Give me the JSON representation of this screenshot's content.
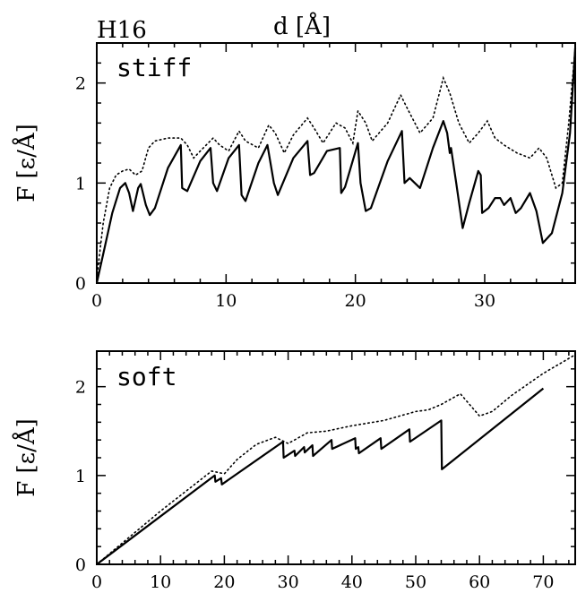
{
  "figure_label": "H16",
  "top_xlabel": "d [Å]",
  "chart_data": [
    {
      "type": "line",
      "panel_label": "stiff",
      "ylabel": "F [ε/Å]",
      "xlim": [
        0,
        37
      ],
      "ylim": [
        0,
        2.4
      ],
      "x_ticks": [
        0,
        10,
        20,
        30
      ],
      "y_ticks": [
        0,
        1,
        2
      ],
      "series": [
        {
          "style": "solid",
          "points": [
            [
              0,
              0
            ],
            [
              0.6,
              0.35
            ],
            [
              1.2,
              0.7
            ],
            [
              1.8,
              0.95
            ],
            [
              2.2,
              1.0
            ],
            [
              2.5,
              0.9
            ],
            [
              2.8,
              0.72
            ],
            [
              3.2,
              0.95
            ],
            [
              3.4,
              0.99
            ],
            [
              3.8,
              0.78
            ],
            [
              4.1,
              0.68
            ],
            [
              4.5,
              0.75
            ],
            [
              5.5,
              1.15
            ],
            [
              6.5,
              1.38
            ],
            [
              6.6,
              0.95
            ],
            [
              7.0,
              0.92
            ],
            [
              8.0,
              1.22
            ],
            [
              8.8,
              1.35
            ],
            [
              9.0,
              1.0
            ],
            [
              9.3,
              0.92
            ],
            [
              10.2,
              1.25
            ],
            [
              11.0,
              1.38
            ],
            [
              11.2,
              0.88
            ],
            [
              11.5,
              0.82
            ],
            [
              12.5,
              1.2
            ],
            [
              13.2,
              1.38
            ],
            [
              13.7,
              1.0
            ],
            [
              14.0,
              0.88
            ],
            [
              15.2,
              1.25
            ],
            [
              16.3,
              1.42
            ],
            [
              16.5,
              1.08
            ],
            [
              16.8,
              1.1
            ],
            [
              17.8,
              1.32
            ],
            [
              18.8,
              1.35
            ],
            [
              18.9,
              0.9
            ],
            [
              19.2,
              0.96
            ],
            [
              20.2,
              1.4
            ],
            [
              20.4,
              1.0
            ],
            [
              20.8,
              0.72
            ],
            [
              21.2,
              0.75
            ],
            [
              22.5,
              1.22
            ],
            [
              23.6,
              1.52
            ],
            [
              23.8,
              1.0
            ],
            [
              24.2,
              1.05
            ],
            [
              25.0,
              0.95
            ],
            [
              26.0,
              1.35
            ],
            [
              26.8,
              1.62
            ],
            [
              27.1,
              1.5
            ],
            [
              27.3,
              1.3
            ],
            [
              27.4,
              1.35
            ],
            [
              27.8,
              1.0
            ],
            [
              28.3,
              0.55
            ],
            [
              28.8,
              0.8
            ],
            [
              29.5,
              1.12
            ],
            [
              29.7,
              1.08
            ],
            [
              29.8,
              0.7
            ],
            [
              30.3,
              0.75
            ],
            [
              30.8,
              0.85
            ],
            [
              31.2,
              0.85
            ],
            [
              31.5,
              0.78
            ],
            [
              32.0,
              0.85
            ],
            [
              32.4,
              0.7
            ],
            [
              32.8,
              0.75
            ],
            [
              33.5,
              0.9
            ],
            [
              34.0,
              0.72
            ],
            [
              34.5,
              0.4
            ],
            [
              35.2,
              0.5
            ],
            [
              36.0,
              0.9
            ],
            [
              36.6,
              1.5
            ],
            [
              37.0,
              2.35
            ]
          ]
        },
        {
          "style": "dotted",
          "points": [
            [
              0,
              0.05
            ],
            [
              0.5,
              0.6
            ],
            [
              1.0,
              0.95
            ],
            [
              1.5,
              1.08
            ],
            [
              2.0,
              1.12
            ],
            [
              2.5,
              1.14
            ],
            [
              3.0,
              1.08
            ],
            [
              3.5,
              1.12
            ],
            [
              4.0,
              1.35
            ],
            [
              4.5,
              1.42
            ],
            [
              5.5,
              1.45
            ],
            [
              6.5,
              1.45
            ],
            [
              7.0,
              1.38
            ],
            [
              7.5,
              1.25
            ],
            [
              8.0,
              1.32
            ],
            [
              9.0,
              1.45
            ],
            [
              9.5,
              1.38
            ],
            [
              10.2,
              1.32
            ],
            [
              11.0,
              1.52
            ],
            [
              11.5,
              1.42
            ],
            [
              12.5,
              1.35
            ],
            [
              13.3,
              1.58
            ],
            [
              13.8,
              1.5
            ],
            [
              14.5,
              1.3
            ],
            [
              15.2,
              1.48
            ],
            [
              16.3,
              1.65
            ],
            [
              16.8,
              1.55
            ],
            [
              17.5,
              1.4
            ],
            [
              18.5,
              1.6
            ],
            [
              19.2,
              1.55
            ],
            [
              19.8,
              1.4
            ],
            [
              20.2,
              1.72
            ],
            [
              20.8,
              1.6
            ],
            [
              21.3,
              1.42
            ],
            [
              22.5,
              1.6
            ],
            [
              23.5,
              1.88
            ],
            [
              24.0,
              1.75
            ],
            [
              25.0,
              1.5
            ],
            [
              26.0,
              1.65
            ],
            [
              26.8,
              2.05
            ],
            [
              27.3,
              1.9
            ],
            [
              28.0,
              1.6
            ],
            [
              28.8,
              1.4
            ],
            [
              29.5,
              1.5
            ],
            [
              30.2,
              1.62
            ],
            [
              30.8,
              1.45
            ],
            [
              31.5,
              1.38
            ],
            [
              32.5,
              1.3
            ],
            [
              33.5,
              1.25
            ],
            [
              34.2,
              1.35
            ],
            [
              34.8,
              1.25
            ],
            [
              35.5,
              0.95
            ],
            [
              36.0,
              1.0
            ],
            [
              36.5,
              1.6
            ],
            [
              37.0,
              2.35
            ]
          ]
        }
      ]
    },
    {
      "type": "line",
      "panel_label": "soft",
      "ylabel": "F [ε/Å]",
      "xlim": [
        0,
        75
      ],
      "ylim": [
        0,
        2.4
      ],
      "x_ticks": [
        0,
        10,
        20,
        30,
        40,
        50,
        60,
        70
      ],
      "y_ticks": [
        0,
        1,
        2
      ],
      "series": [
        {
          "style": "solid",
          "points": [
            [
              0,
              0
            ],
            [
              18.5,
              1.0
            ],
            [
              18.6,
              0.93
            ],
            [
              19.5,
              0.97
            ],
            [
              19.6,
              0.9
            ],
            [
              29.2,
              1.38
            ],
            [
              29.3,
              1.2
            ],
            [
              31.0,
              1.28
            ],
            [
              31.1,
              1.22
            ],
            [
              32.5,
              1.32
            ],
            [
              32.6,
              1.26
            ],
            [
              33.8,
              1.34
            ],
            [
              33.9,
              1.22
            ],
            [
              36.8,
              1.4
            ],
            [
              36.9,
              1.3
            ],
            [
              40.5,
              1.42
            ],
            [
              40.6,
              1.3
            ],
            [
              41.0,
              1.32
            ],
            [
              41.1,
              1.25
            ],
            [
              44.5,
              1.42
            ],
            [
              44.6,
              1.3
            ],
            [
              49.0,
              1.52
            ],
            [
              49.1,
              1.38
            ],
            [
              54.0,
              1.62
            ],
            [
              54.1,
              1.07
            ],
            [
              70.0,
              1.98
            ]
          ]
        },
        {
          "style": "dotted",
          "points": [
            [
              0,
              0
            ],
            [
              5,
              0.3
            ],
            [
              10,
              0.6
            ],
            [
              15,
              0.88
            ],
            [
              18,
              1.05
            ],
            [
              20,
              1.02
            ],
            [
              22,
              1.18
            ],
            [
              25,
              1.35
            ],
            [
              28,
              1.43
            ],
            [
              30,
              1.36
            ],
            [
              33,
              1.48
            ],
            [
              36,
              1.5
            ],
            [
              40,
              1.56
            ],
            [
              45,
              1.62
            ],
            [
              50,
              1.72
            ],
            [
              52,
              1.74
            ],
            [
              54,
              1.8
            ],
            [
              57,
              1.92
            ],
            [
              60,
              1.67
            ],
            [
              62,
              1.72
            ],
            [
              65,
              1.9
            ],
            [
              70,
              2.15
            ],
            [
              75,
              2.36
            ]
          ]
        }
      ]
    }
  ]
}
